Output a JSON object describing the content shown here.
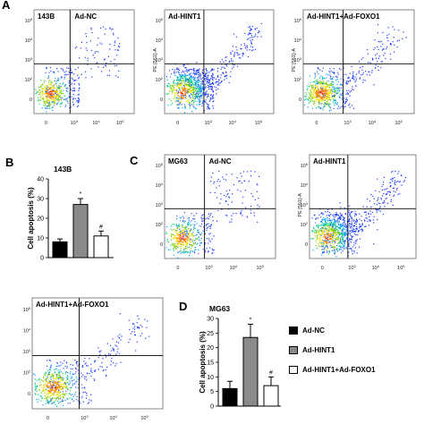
{
  "panels": {
    "A": "A",
    "B": "B",
    "C": "C",
    "D": "D"
  },
  "flow_plots": [
    {
      "id": "fa1",
      "title": "143B",
      "title2": "Ad-NC",
      "ylabel": "",
      "density": 0.9,
      "blob": "low"
    },
    {
      "id": "fa2",
      "title": "Ad-HINT1",
      "title2": "",
      "ylabel": "PE [561]-A",
      "density": 1.6,
      "blob": "diag"
    },
    {
      "id": "fa3",
      "title": "Ad-HINT1+Ad-FOXO1",
      "title2": "",
      "ylabel": "PE [561]-A",
      "density": 1.2,
      "blob": "mid"
    },
    {
      "id": "fc1",
      "title": "MG63",
      "title2": "Ad-NC",
      "ylabel": "",
      "density": 0.9,
      "blob": "low"
    },
    {
      "id": "fc2",
      "title": "Ad-HINT1",
      "title2": "",
      "ylabel": "PE [561]-A",
      "density": 1.6,
      "blob": "diag"
    },
    {
      "id": "fc3",
      "title": "Ad-HINT1+Ad-FOXO1",
      "title2": "",
      "ylabel": "",
      "density": 1.1,
      "blob": "mid"
    }
  ],
  "tick_labels": {
    "y": [
      "10^5",
      "10^4",
      "10^3",
      "10^2",
      "0"
    ],
    "x": [
      "0",
      "10^3",
      "10^4",
      "10^5"
    ]
  },
  "chart_data": [
    {
      "type": "bar",
      "title": "143B",
      "ylabel": "Cell apoptosis (%)",
      "categories": [
        "Ad-NC",
        "Ad-HINT1",
        "Ad-HINT1+Ad-FOXO1"
      ],
      "values": [
        8,
        27,
        11
      ],
      "errors": [
        1.5,
        3,
        2.5
      ],
      "annotations": [
        "",
        "*",
        "#"
      ],
      "yticks": [
        0,
        10,
        20,
        30,
        40
      ],
      "ylim": [
        0,
        40
      ],
      "colors": [
        "#000000",
        "#8a8a8a",
        "#ffffff"
      ]
    },
    {
      "type": "bar",
      "title": "MG63",
      "ylabel": "Cell apoptosis (%)",
      "categories": [
        "Ad-NC",
        "Ad-HINT1",
        "Ad-HINT1+Ad-FOXO1"
      ],
      "values": [
        6,
        23.5,
        7
      ],
      "errors": [
        2.5,
        4.5,
        3
      ],
      "annotations": [
        "",
        "*",
        "#"
      ],
      "yticks": [
        0,
        5,
        10,
        15,
        20,
        25,
        30
      ],
      "ylim": [
        0,
        30
      ],
      "colors": [
        "#000000",
        "#8a8a8a",
        "#ffffff"
      ]
    }
  ],
  "legend": [
    {
      "label": "Ad-NC",
      "color": "#000000"
    },
    {
      "label": "Ad-HINT1",
      "color": "#8a8a8a"
    },
    {
      "label": "Ad-HINT1+Ad-FOXO1",
      "color": "#ffffff"
    }
  ]
}
